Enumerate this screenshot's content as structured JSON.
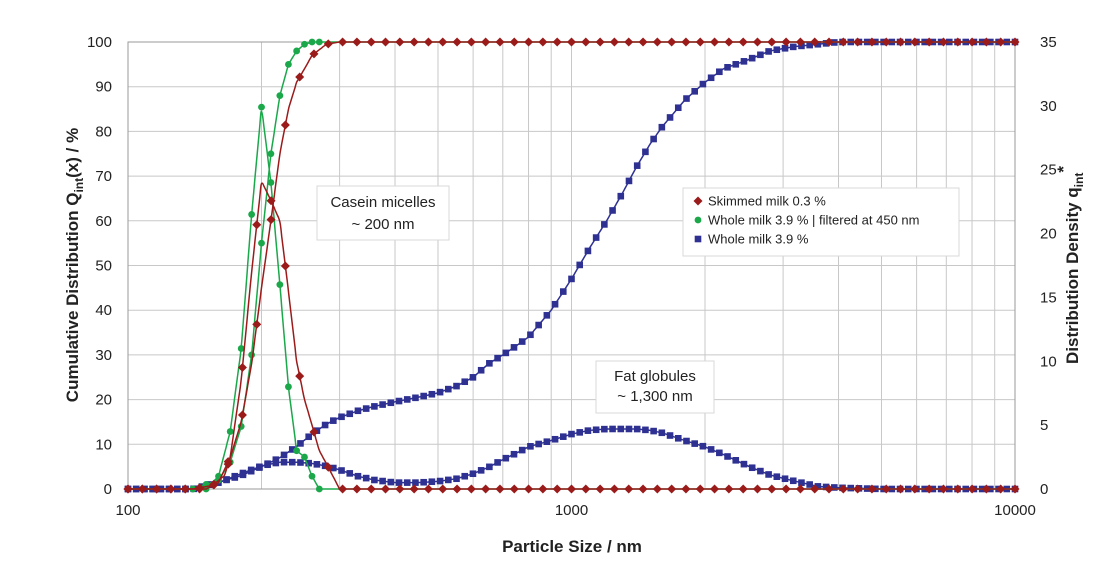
{
  "chart_data": {
    "type": "line",
    "x_scale": "log",
    "xlim": [
      100,
      10000
    ],
    "ylim_left": [
      0,
      100
    ],
    "ylim_right": [
      0,
      35
    ],
    "grid": true,
    "legend_position": "upper-right, inside plot",
    "x_ticks": [
      "100",
      "1000",
      "10000"
    ],
    "y_left_ticks": [
      "0",
      "10",
      "20",
      "30",
      "40",
      "50",
      "60",
      "70",
      "80",
      "90",
      "100"
    ],
    "y_right_ticks": [
      "0",
      "5",
      "10",
      "15",
      "20",
      "25",
      "30",
      "35"
    ],
    "xlabel": "Particle Size / nm",
    "ylabel_left": {
      "main": "Cumulative Distribution Q",
      "sub": "int",
      "tail": "(x) / %"
    },
    "ylabel_right": {
      "main": "Distribution Density  q",
      "sub": "int",
      "sup": "*"
    },
    "annotations": [
      {
        "line1": "Casein micelles",
        "line2": "~ 200 nm"
      },
      {
        "line1": "Fat globules",
        "line2": "~ 1,300 nm"
      }
    ],
    "series": [
      {
        "name": "Skimmed milk 0.3 %",
        "marker": "diamond",
        "color": "#9b1b1b",
        "cumulative": {
          "x": [
            100,
            140,
            155,
            165,
            170,
            180,
            190,
            200,
            210,
            220,
            230,
            240,
            250,
            260,
            280,
            300,
            10000
          ],
          "y": [
            0,
            0,
            0.8,
            3,
            7,
            15,
            28,
            45,
            60,
            75,
            85,
            91,
            94,
            97,
            99.5,
            100,
            100
          ]
        },
        "density": {
          "x": [
            100,
            150,
            160,
            170,
            180,
            190,
            200,
            210,
            220,
            230,
            240,
            250,
            260,
            270,
            280,
            300,
            10000
          ],
          "y": [
            0,
            0,
            0.5,
            2.5,
            8.5,
            17,
            24.1,
            22.6,
            21,
            15.5,
            10,
            7,
            5,
            3,
            2,
            0,
            0
          ]
        }
      },
      {
        "name": "Whole milk 3.9 % | filtered at 450 nm",
        "marker": "circle",
        "color": "#1aa84a",
        "cumulative": {
          "x": [
            100,
            140,
            160,
            170,
            180,
            190,
            200,
            210,
            220,
            230,
            240,
            250,
            260,
            10000
          ],
          "y": [
            0,
            0,
            2,
            6,
            14,
            30,
            55,
            75,
            88,
            95,
            98,
            99.5,
            100,
            100
          ]
        },
        "density": {
          "x": [
            100,
            150,
            160,
            170,
            180,
            190,
            200,
            210,
            220,
            230,
            240,
            250,
            260,
            270,
            10000
          ],
          "y": [
            0,
            0,
            1,
            4.5,
            11,
            21.5,
            29.9,
            24,
            16,
            8,
            3,
            2.5,
            1,
            0,
            0
          ]
        }
      },
      {
        "name": "Whole milk 3.9 %",
        "marker": "square",
        "color": "#2e3192",
        "cumulative": {
          "x": [
            100,
            140,
            160,
            180,
            200,
            220,
            240,
            260,
            280,
            300,
            330,
            360,
            400,
            450,
            500,
            550,
            600,
            650,
            700,
            750,
            800,
            900,
            1000,
            1100,
            1200,
            1300,
            1400,
            1500,
            1600,
            1800,
            2000,
            2200,
            2500,
            2800,
            3200,
            3600,
            4000,
            5000,
            6000,
            10000
          ],
          "y": [
            0,
            0,
            1.5,
            3,
            5,
            7,
            9.5,
            12.3,
            14.5,
            16,
            17.5,
            18.5,
            19.5,
            20.5,
            21.5,
            23,
            25,
            28,
            30,
            32,
            34,
            40,
            47,
            54,
            60,
            66,
            72,
            77,
            81,
            87,
            91,
            94,
            96,
            98,
            99,
            99.5,
            100,
            100,
            100,
            100
          ]
        },
        "density": {
          "x": [
            100,
            140,
            160,
            180,
            200,
            220,
            240,
            260,
            280,
            300,
            330,
            360,
            400,
            450,
            500,
            550,
            600,
            650,
            700,
            750,
            800,
            900,
            1000,
            1100,
            1200,
            1300,
            1400,
            1500,
            1600,
            1800,
            2000,
            2200,
            2500,
            2800,
            3200,
            3600,
            4000,
            5000,
            6000,
            10000
          ],
          "y": [
            0,
            0,
            0.5,
            1.2,
            1.8,
            2.1,
            2.1,
            2,
            1.8,
            1.5,
            1,
            0.7,
            0.5,
            0.5,
            0.6,
            0.8,
            1.2,
            1.7,
            2.3,
            2.8,
            3.3,
            3.8,
            4.3,
            4.6,
            4.7,
            4.7,
            4.7,
            4.6,
            4.4,
            3.8,
            3.3,
            2.7,
            1.8,
            1.1,
            0.6,
            0.2,
            0.1,
            0,
            0,
            0
          ]
        }
      }
    ]
  }
}
